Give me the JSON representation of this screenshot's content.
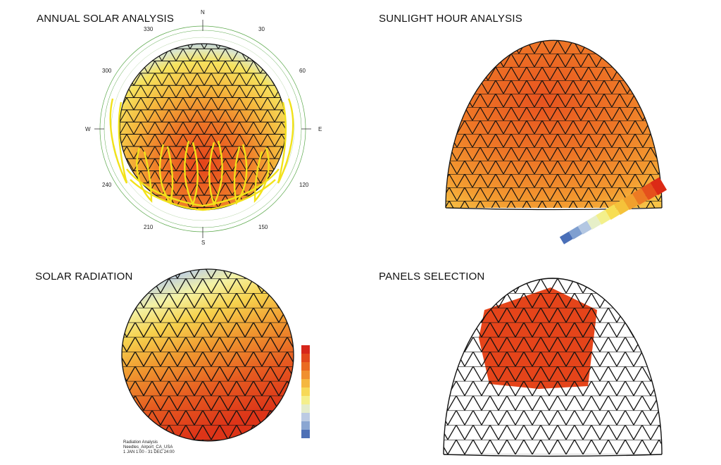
{
  "panels": {
    "annual": {
      "title": "ANNUAL SOLAR ANALYSIS"
    },
    "sunlight": {
      "title": "SUNLIGHT HOUR ANALYSIS"
    },
    "radiation": {
      "title": "SOLAR RADIATION"
    },
    "panels_selection": {
      "title": "PANELS SELECTION"
    }
  },
  "compass": {
    "north": "N",
    "south": "S",
    "east": "E",
    "west": "W",
    "deg330": "330",
    "deg30": "30",
    "deg60": "60",
    "deg300": "300",
    "deg120": "120",
    "deg240": "240",
    "deg150": "150",
    "deg210": "210"
  },
  "sunlight_legend": {
    "labels": [
      "",
      "",
      "",
      "",
      "",
      "",
      "",
      "",
      "",
      "",
      ""
    ],
    "colors": [
      "#4a6fb8",
      "#7f9fd0",
      "#b3c7e2",
      "#e6efc8",
      "#f3f08b",
      "#f7de54",
      "#f5c23a",
      "#f1a02d",
      "#ec7a23",
      "#e5501c",
      "#dc2a16"
    ]
  },
  "radiation_legend": {
    "labels": [
      "",
      "",
      "",
      "",
      "",
      "",
      "",
      "",
      "",
      "",
      ""
    ],
    "colors": [
      "#d6261a",
      "#e2481c",
      "#ea6a22",
      "#f09030",
      "#f5b73f",
      "#f7d958",
      "#f4ef8c",
      "#e4eccb",
      "#bccbe3",
      "#8aa6d2",
      "#4e70b6"
    ]
  },
  "radiation_caption": {
    "line1": "Radiation Analysis",
    "line2": "Needles_Airport_CA_USA",
    "line3": "1 JAN 1:00 - 31 DEC 24:00"
  },
  "colors": {
    "hot": "#e5441a",
    "warm": "#f29a2e",
    "mild": "#f7e463",
    "cool": "#dde9ee",
    "cold": "#98b4d8",
    "sunpath": "#f2e21a",
    "wire": "#111111",
    "compass_ring": "#5aa84a"
  }
}
